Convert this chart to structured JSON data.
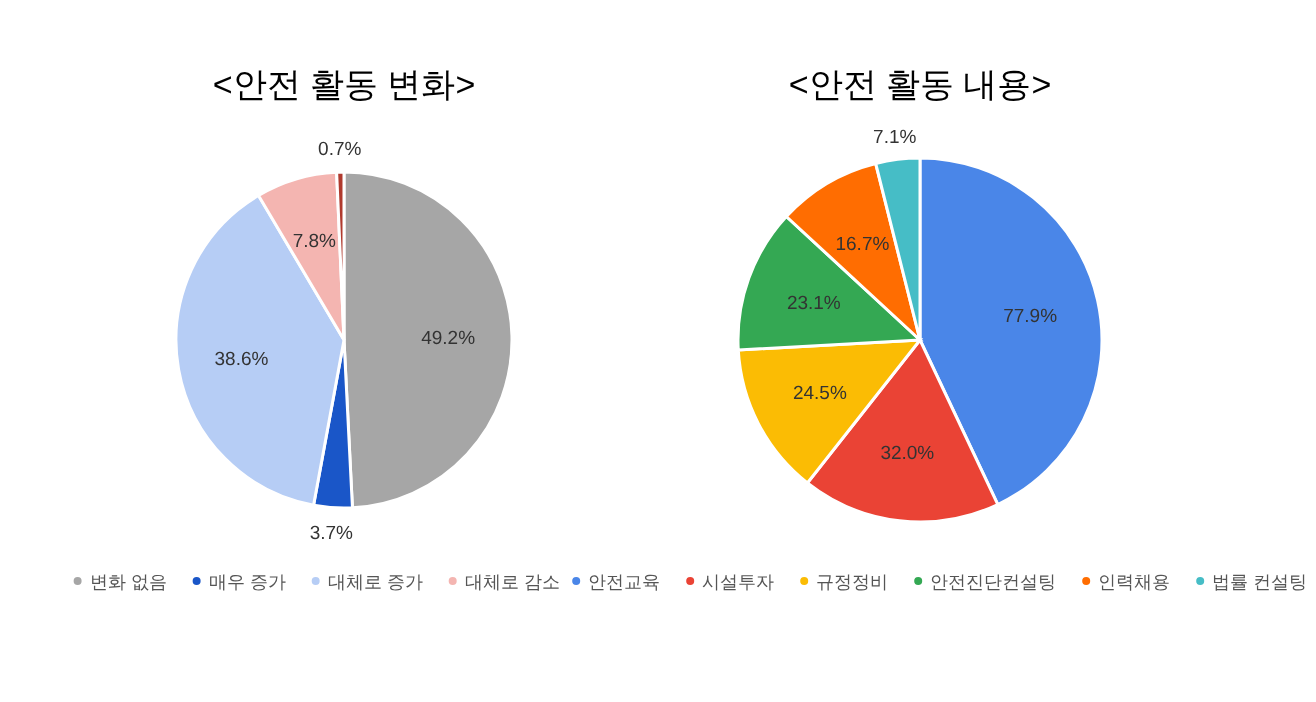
{
  "chart_data": [
    {
      "type": "pie",
      "title": "<안전 활동 변화>",
      "categories": [
        "변화 없음",
        "매우 증가",
        "대체로 증가",
        "대체로 감소",
        null
      ],
      "values": [
        49.2,
        3.7,
        38.6,
        7.8,
        0.7
      ],
      "colors": [
        "#a6a6a6",
        "#1a56c8",
        "#b6cdf5",
        "#f4b5b1",
        "#b03a2e"
      ],
      "value_labels": [
        "49.2%",
        "3.7%",
        "38.6%",
        "7.8%",
        "0.7%"
      ],
      "legend": "bottom"
    },
    {
      "type": "pie",
      "title": "<안전 활동 내용>",
      "categories": [
        "안전교육",
        "시설투자",
        "규정정비",
        "안전진단컨설팅",
        "인력채용",
        "법률 컨설팅"
      ],
      "values": [
        77.9,
        32.0,
        24.5,
        23.1,
        16.7,
        7.1
      ],
      "colors": [
        "#4a86e8",
        "#ea4335",
        "#fbbc04",
        "#34a853",
        "#ff6d01",
        "#46bdc6"
      ],
      "value_labels": [
        "77.9%",
        "32.0%",
        "24.5%",
        "23.1%",
        "16.7%",
        "7.1%"
      ],
      "legend": "bottom"
    }
  ]
}
